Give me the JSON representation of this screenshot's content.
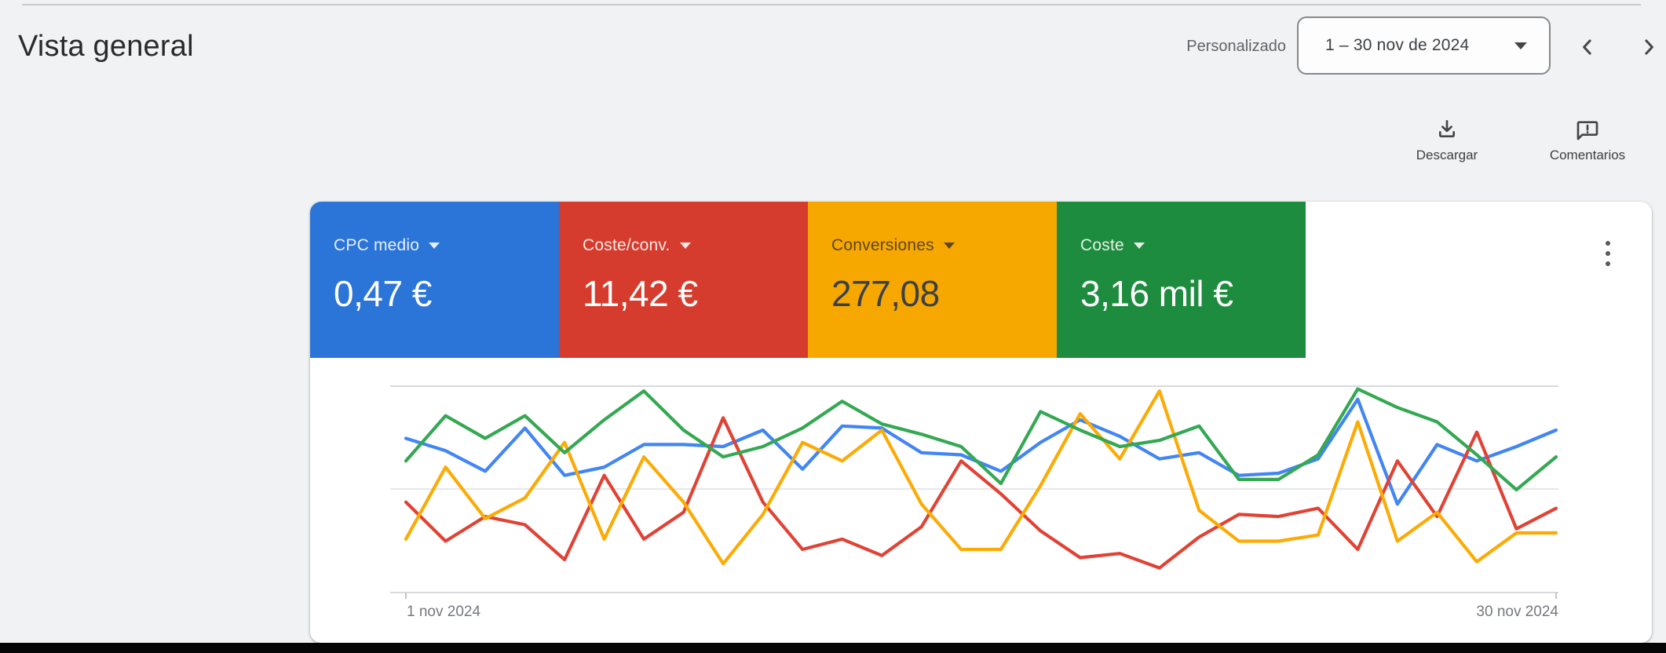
{
  "page": {
    "title": "Vista general"
  },
  "date_bar": {
    "mode_label": "Personalizado",
    "range_value": "1 – 30 nov de 2024",
    "prev_icon": "chevron-left",
    "next_icon": "chevron-right",
    "dropdown_icon": "caret-down"
  },
  "toolbar": {
    "download_label": "Descargar",
    "download_icon": "download-icon",
    "feedback_label": "Comentarios",
    "feedback_icon": "feedback-bubble-icon"
  },
  "scorecards": [
    {
      "label": "CPC medio",
      "value": "0,47 €",
      "color": "#2b74d8",
      "label_color": "rgba(255,255,255,0.88)",
      "value_color": "#ffffff"
    },
    {
      "label": "Coste/conv.",
      "value": "11,42 €",
      "color": "#d63c2e",
      "label_color": "rgba(255,255,255,0.88)",
      "value_color": "#ffffff"
    },
    {
      "label": "Conversiones",
      "value": "277,08",
      "color": "#f7a800",
      "label_color": "rgba(33,33,36,0.72)",
      "value_color": "#3c4043"
    },
    {
      "label": "Coste",
      "value": "3,16 mil €",
      "color": "#1e8c3e",
      "label_color": "rgba(255,255,255,0.88)",
      "value_color": "#ffffff"
    }
  ],
  "menu": {
    "kebab_icon": "three-dot-menu"
  },
  "chart_data": {
    "type": "line",
    "title": "",
    "x": [
      1,
      2,
      3,
      4,
      5,
      6,
      7,
      8,
      9,
      10,
      11,
      12,
      13,
      14,
      15,
      16,
      17,
      18,
      19,
      20,
      21,
      22,
      23,
      24,
      25,
      26,
      27,
      28,
      29,
      30
    ],
    "x_start_label": "1 nov 2024",
    "x_end_label": "30 nov 2024",
    "y_axis_labels_visible": false,
    "ylim": [
      0,
      105
    ],
    "grid": "two light horizontal gridlines plus baseline, no y tick labels",
    "legend_position": "none (colors match scorecards above)",
    "series": [
      {
        "name": "CPC medio",
        "color": "#4285f4",
        "values": [
          75,
          69,
          59,
          80,
          57,
          61,
          72,
          72,
          71,
          79,
          60,
          81,
          80,
          68,
          67,
          59,
          73,
          84,
          76,
          65,
          68,
          57,
          58,
          65,
          94,
          43,
          72,
          64,
          71,
          79
        ]
      },
      {
        "name": "Coste/conv.",
        "color": "#e04335",
        "values": [
          44,
          25,
          37,
          33,
          16,
          57,
          26,
          39,
          85,
          44,
          21,
          26,
          18,
          32,
          64,
          48,
          30,
          17,
          19,
          12,
          27,
          38,
          37,
          41,
          21,
          64,
          37,
          78,
          31,
          41
        ]
      },
      {
        "name": "Conversiones",
        "color": "#fbab05",
        "values": [
          26,
          61,
          36,
          46,
          73,
          26,
          66,
          44,
          14,
          38,
          73,
          64,
          79,
          43,
          21,
          21,
          52,
          87,
          65,
          98,
          40,
          25,
          25,
          28,
          83,
          25,
          39,
          15,
          29,
          29
        ]
      },
      {
        "name": "Coste",
        "color": "#34a853",
        "values": [
          64,
          86,
          75,
          86,
          68,
          84,
          98,
          79,
          66,
          71,
          80,
          93,
          82,
          77,
          71,
          53,
          88,
          79,
          71,
          74,
          81,
          55,
          55,
          67,
          99,
          90,
          83,
          67,
          50,
          66
        ]
      }
    ]
  }
}
